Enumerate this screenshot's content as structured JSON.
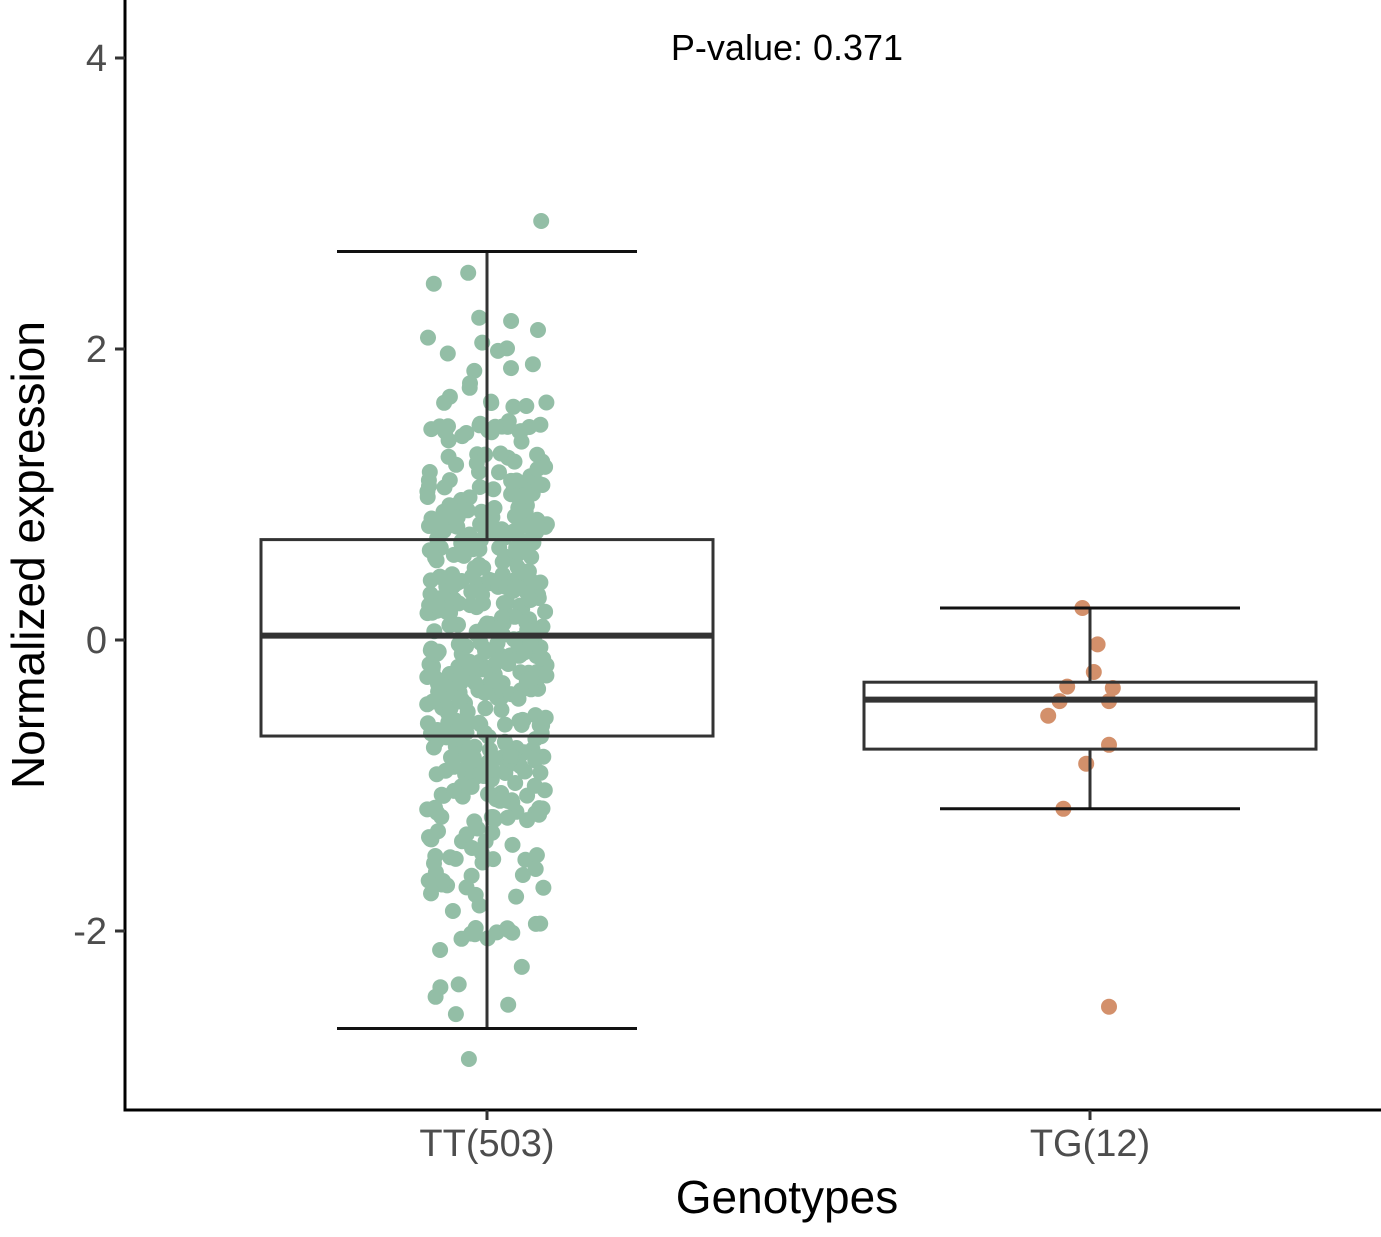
{
  "chart_data": {
    "type": "boxplot",
    "title": "",
    "annotation": "P-value: 0.371",
    "xlabel": "Genotypes",
    "ylabel": "Normalized expression",
    "ylim": [
      -3.2,
      4.4
    ],
    "yticks": [
      -2,
      0,
      2,
      4
    ],
    "ytick_labels": [
      "-2",
      "0",
      "2",
      "4"
    ],
    "grid": false,
    "legend": "none",
    "categories": [
      "TT(503)",
      "TG(12)"
    ],
    "boxes": [
      {
        "name": "TT(503)",
        "n": 503,
        "color": "#93bea6",
        "q1": -0.66,
        "median": 0.03,
        "q3": 0.69,
        "whisker_low": -2.67,
        "whisker_high": 2.67,
        "outliers": [
          2.88,
          -2.88
        ]
      },
      {
        "name": "TG(12)",
        "n": 12,
        "color": "#d3906b",
        "q1": -0.75,
        "median": -0.41,
        "q3": -0.29,
        "whisker_low": -1.16,
        "whisker_high": 0.22,
        "outliers": [
          -2.52
        ]
      }
    ],
    "tg_points": [
      {
        "x": 0.98,
        "y": 0.22
      },
      {
        "x": 1.02,
        "y": -0.03
      },
      {
        "x": 1.01,
        "y": -0.22
      },
      {
        "x": 0.94,
        "y": -0.32
      },
      {
        "x": 1.06,
        "y": -0.33
      },
      {
        "x": 0.92,
        "y": -0.42
      },
      {
        "x": 1.05,
        "y": -0.42
      },
      {
        "x": 0.89,
        "y": -0.52
      },
      {
        "x": 1.05,
        "y": -0.72
      },
      {
        "x": 0.99,
        "y": -0.85
      },
      {
        "x": 0.93,
        "y": -1.16
      },
      {
        "x": 1.05,
        "y": -2.52
      }
    ]
  }
}
